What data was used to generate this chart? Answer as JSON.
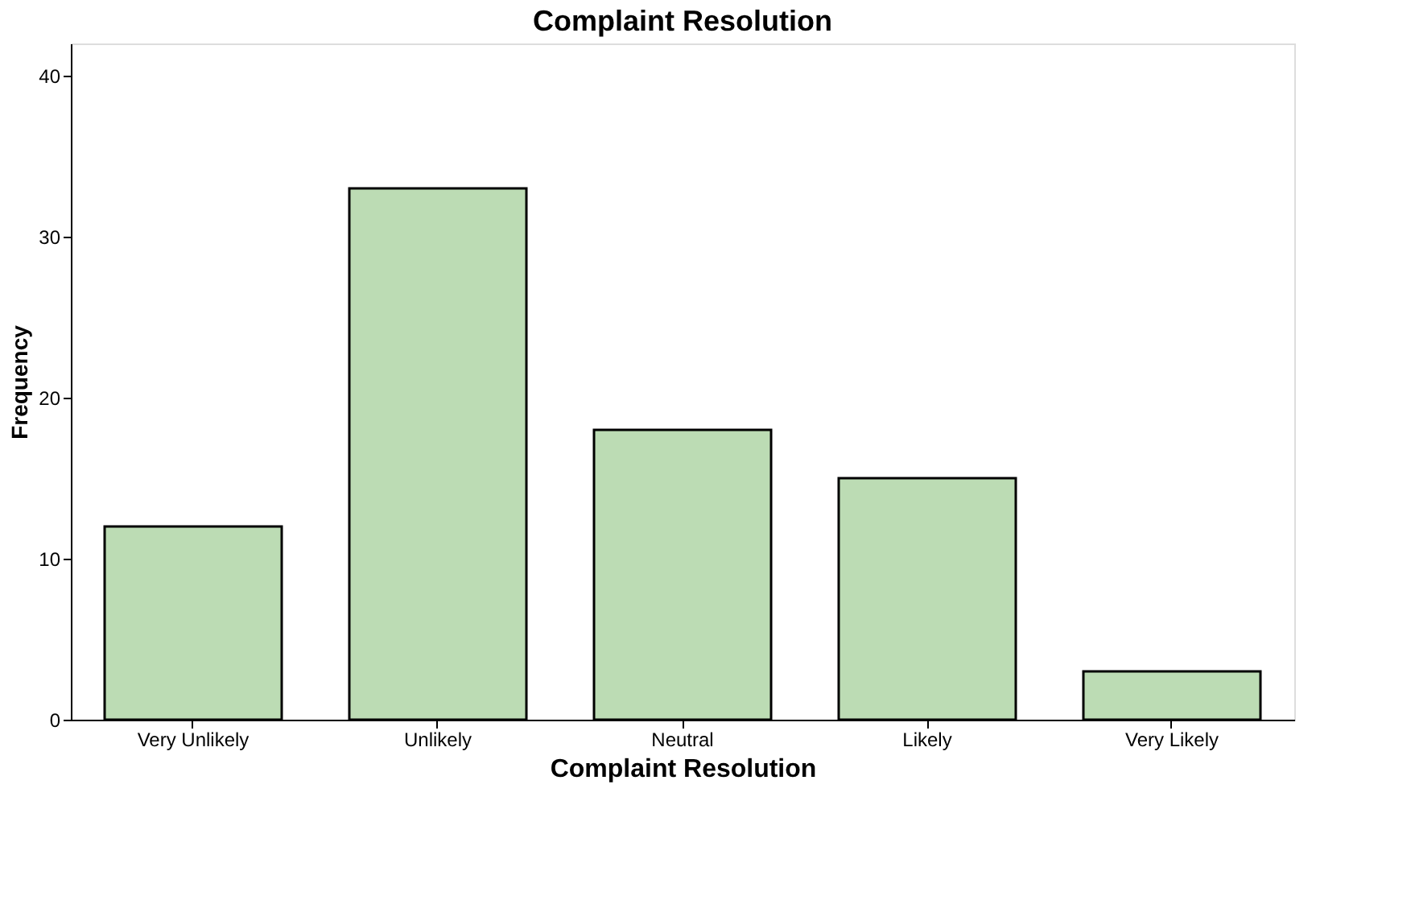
{
  "chart_data": {
    "type": "bar",
    "title": "Complaint Resolution",
    "xlabel": "Complaint Resolution",
    "ylabel": "Frequency",
    "categories": [
      "Very Unlikely",
      "Unlikely",
      "Neutral",
      "Likely",
      "Very Likely"
    ],
    "values": [
      12,
      33,
      18,
      15,
      3
    ],
    "color": "#bcdcb4",
    "ylim": [
      0,
      42
    ],
    "yticks": [
      0,
      10,
      20,
      30,
      40
    ],
    "grid": false
  }
}
